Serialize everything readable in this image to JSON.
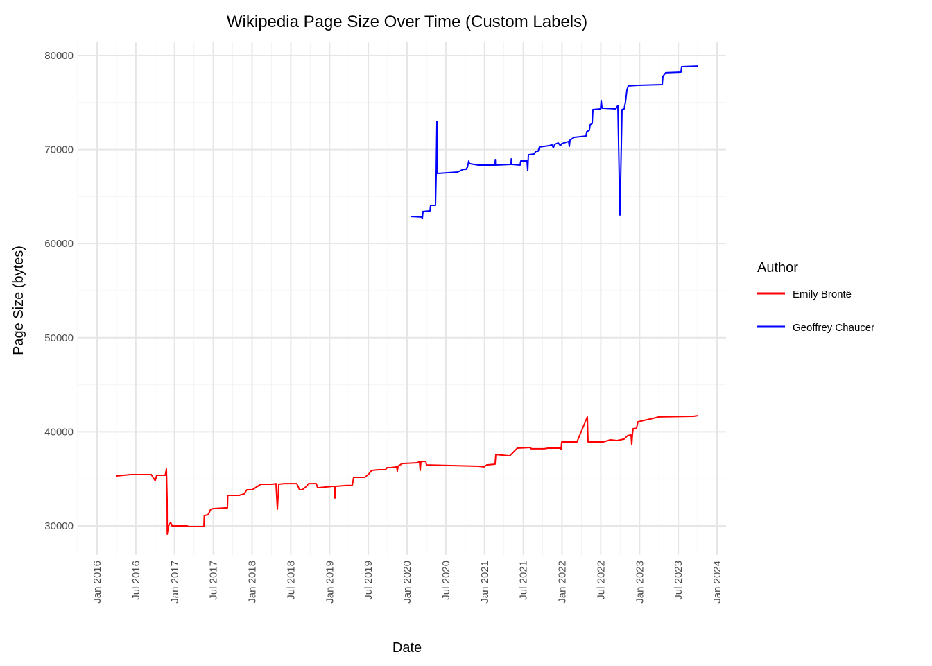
{
  "chart_data": {
    "type": "line",
    "title": "Wikipedia Page Size Over Time (Custom Labels)",
    "xlabel": "Date",
    "ylabel": "Page Size (bytes)",
    "x_unit": "decimal year",
    "xlim": [
      2015.75,
      2024.1
    ],
    "ylim": [
      26800,
      81500
    ],
    "grid": true,
    "legend": {
      "title": "Author",
      "placement": "right"
    },
    "x_ticks": [
      {
        "value": 2016.0,
        "label": "Jan 2016"
      },
      {
        "value": 2016.5,
        "label": "Jul 2016"
      },
      {
        "value": 2017.0,
        "label": "Jan 2017"
      },
      {
        "value": 2017.5,
        "label": "Jul 2017"
      },
      {
        "value": 2018.0,
        "label": "Jan 2018"
      },
      {
        "value": 2018.5,
        "label": "Jul 2018"
      },
      {
        "value": 2019.0,
        "label": "Jan 2019"
      },
      {
        "value": 2019.5,
        "label": "Jul 2019"
      },
      {
        "value": 2020.0,
        "label": "Jan 2020"
      },
      {
        "value": 2020.5,
        "label": "Jul 2020"
      },
      {
        "value": 2021.0,
        "label": "Jan 2021"
      },
      {
        "value": 2021.5,
        "label": "Jul 2021"
      },
      {
        "value": 2022.0,
        "label": "Jan 2022"
      },
      {
        "value": 2022.5,
        "label": "Jul 2022"
      },
      {
        "value": 2023.0,
        "label": "Jan 2023"
      },
      {
        "value": 2023.5,
        "label": "Jul 2023"
      },
      {
        "value": 2024.0,
        "label": "Jan 2024"
      }
    ],
    "y_ticks": [
      {
        "value": 30000,
        "label": "30000"
      },
      {
        "value": 40000,
        "label": "40000"
      },
      {
        "value": 50000,
        "label": "50000"
      },
      {
        "value": 60000,
        "label": "60000"
      },
      {
        "value": 70000,
        "label": "70000"
      },
      {
        "value": 80000,
        "label": "80000"
      }
    ],
    "series": [
      {
        "name": "Emily Brontë",
        "color": "#ff0000",
        "points": [
          [
            2016.25,
            35310
          ],
          [
            2016.43,
            35455
          ],
          [
            2016.7,
            35455
          ],
          [
            2016.75,
            34790
          ],
          [
            2016.77,
            35380
          ],
          [
            2016.88,
            35380
          ],
          [
            2016.895,
            36045
          ],
          [
            2016.904,
            32800
          ],
          [
            2016.906,
            29110
          ],
          [
            2016.922,
            30000
          ],
          [
            2016.949,
            30370
          ],
          [
            2016.966,
            30000
          ],
          [
            2017.163,
            30000
          ],
          [
            2017.181,
            29925
          ],
          [
            2017.378,
            29925
          ],
          [
            2017.383,
            31100
          ],
          [
            2017.432,
            31180
          ],
          [
            2017.468,
            31770
          ],
          [
            2017.503,
            31840
          ],
          [
            2017.682,
            31920
          ],
          [
            2017.687,
            33240
          ],
          [
            2017.834,
            33240
          ],
          [
            2017.897,
            33390
          ],
          [
            2017.933,
            33830
          ],
          [
            2018.004,
            33830
          ],
          [
            2018.112,
            34420
          ],
          [
            2018.255,
            34420
          ],
          [
            2018.309,
            34490
          ],
          [
            2018.327,
            31770
          ],
          [
            2018.345,
            34420
          ],
          [
            2018.416,
            34490
          ],
          [
            2018.577,
            34490
          ],
          [
            2018.613,
            33830
          ],
          [
            2018.649,
            33830
          ],
          [
            2018.702,
            34200
          ],
          [
            2018.729,
            34490
          ],
          [
            2018.828,
            34490
          ],
          [
            2018.846,
            34050
          ],
          [
            2019.043,
            34200
          ],
          [
            2019.06,
            34200
          ],
          [
            2019.069,
            32950
          ],
          [
            2019.078,
            34200
          ],
          [
            2019.222,
            34300
          ],
          [
            2019.293,
            34300
          ],
          [
            2019.311,
            35160
          ],
          [
            2019.454,
            35160
          ],
          [
            2019.508,
            35530
          ],
          [
            2019.544,
            35900
          ],
          [
            2019.633,
            35970
          ],
          [
            2019.723,
            35970
          ],
          [
            2019.741,
            36190
          ],
          [
            2019.794,
            36190
          ],
          [
            2019.866,
            36270
          ],
          [
            2019.875,
            35820
          ],
          [
            2019.884,
            36340
          ],
          [
            2019.937,
            36630
          ],
          [
            2020.134,
            36710
          ],
          [
            2020.161,
            36850
          ],
          [
            2020.17,
            35900
          ],
          [
            2020.179,
            36850
          ],
          [
            2020.242,
            36850
          ],
          [
            2020.251,
            36480
          ],
          [
            2020.922,
            36340
          ],
          [
            2020.993,
            36270
          ],
          [
            2021.029,
            36480
          ],
          [
            2021.136,
            36560
          ],
          [
            2021.145,
            37590
          ],
          [
            2021.324,
            37440
          ],
          [
            2021.423,
            38260
          ],
          [
            2021.593,
            38330
          ],
          [
            2021.602,
            38190
          ],
          [
            2021.772,
            38190
          ],
          [
            2021.817,
            38260
          ],
          [
            2021.978,
            38260
          ],
          [
            2021.987,
            38110
          ],
          [
            2021.996,
            38920
          ],
          [
            2022.192,
            38920
          ],
          [
            2022.327,
            41580
          ],
          [
            2022.336,
            38920
          ],
          [
            2022.532,
            38920
          ],
          [
            2022.622,
            39140
          ],
          [
            2022.711,
            39070
          ],
          [
            2022.801,
            39220
          ],
          [
            2022.846,
            39590
          ],
          [
            2022.89,
            39660
          ],
          [
            2022.899,
            38630
          ],
          [
            2022.908,
            39740
          ],
          [
            2022.917,
            40320
          ],
          [
            2022.962,
            40400
          ],
          [
            2022.98,
            41060
          ],
          [
            2023.141,
            41360
          ],
          [
            2023.177,
            41430
          ],
          [
            2023.248,
            41580
          ],
          [
            2023.696,
            41650
          ],
          [
            2023.749,
            41720
          ]
        ]
      },
      {
        "name": "Geoffrey Chaucer",
        "color": "#0000ff",
        "points": [
          [
            2020.045,
            62890
          ],
          [
            2020.188,
            62820
          ],
          [
            2020.197,
            62670
          ],
          [
            2020.206,
            63410
          ],
          [
            2020.295,
            63480
          ],
          [
            2020.304,
            64070
          ],
          [
            2020.367,
            64070
          ],
          [
            2020.376,
            67320
          ],
          [
            2020.385,
            72990
          ],
          [
            2020.389,
            67460
          ],
          [
            2020.653,
            67610
          ],
          [
            2020.725,
            67900
          ],
          [
            2020.761,
            67900
          ],
          [
            2020.779,
            68130
          ],
          [
            2020.796,
            68790
          ],
          [
            2020.805,
            68500
          ],
          [
            2020.922,
            68350
          ],
          [
            2021.136,
            68350
          ],
          [
            2021.139,
            68940
          ],
          [
            2021.141,
            68350
          ],
          [
            2021.342,
            68420
          ],
          [
            2021.345,
            69010
          ],
          [
            2021.351,
            68420
          ],
          [
            2021.459,
            68350
          ],
          [
            2021.468,
            68790
          ],
          [
            2021.548,
            68790
          ],
          [
            2021.557,
            67760
          ],
          [
            2021.566,
            69450
          ],
          [
            2021.638,
            69530
          ],
          [
            2021.664,
            69820
          ],
          [
            2021.691,
            69820
          ],
          [
            2021.709,
            70270
          ],
          [
            2021.834,
            70410
          ],
          [
            2021.87,
            70490
          ],
          [
            2021.888,
            70190
          ],
          [
            2021.906,
            70560
          ],
          [
            2021.951,
            70710
          ],
          [
            2021.978,
            70410
          ],
          [
            2021.996,
            70630
          ],
          [
            2022.085,
            70860
          ],
          [
            2022.094,
            70340
          ],
          [
            2022.103,
            71000
          ],
          [
            2022.157,
            71300
          ],
          [
            2022.309,
            71440
          ],
          [
            2022.318,
            71890
          ],
          [
            2022.353,
            72040
          ],
          [
            2022.362,
            72630
          ],
          [
            2022.389,
            72780
          ],
          [
            2022.398,
            74250
          ],
          [
            2022.497,
            74320
          ],
          [
            2022.506,
            75210
          ],
          [
            2022.515,
            74400
          ],
          [
            2022.694,
            74320
          ],
          [
            2022.72,
            74690
          ],
          [
            2022.747,
            63040
          ],
          [
            2022.774,
            74250
          ],
          [
            2022.801,
            74320
          ],
          [
            2022.819,
            75060
          ],
          [
            2022.837,
            76310
          ],
          [
            2022.855,
            76760
          ],
          [
            2022.98,
            76830
          ],
          [
            2023.293,
            76900
          ],
          [
            2023.302,
            77790
          ],
          [
            2023.338,
            78160
          ],
          [
            2023.535,
            78230
          ],
          [
            2023.544,
            78820
          ],
          [
            2023.749,
            78890
          ]
        ]
      }
    ]
  }
}
